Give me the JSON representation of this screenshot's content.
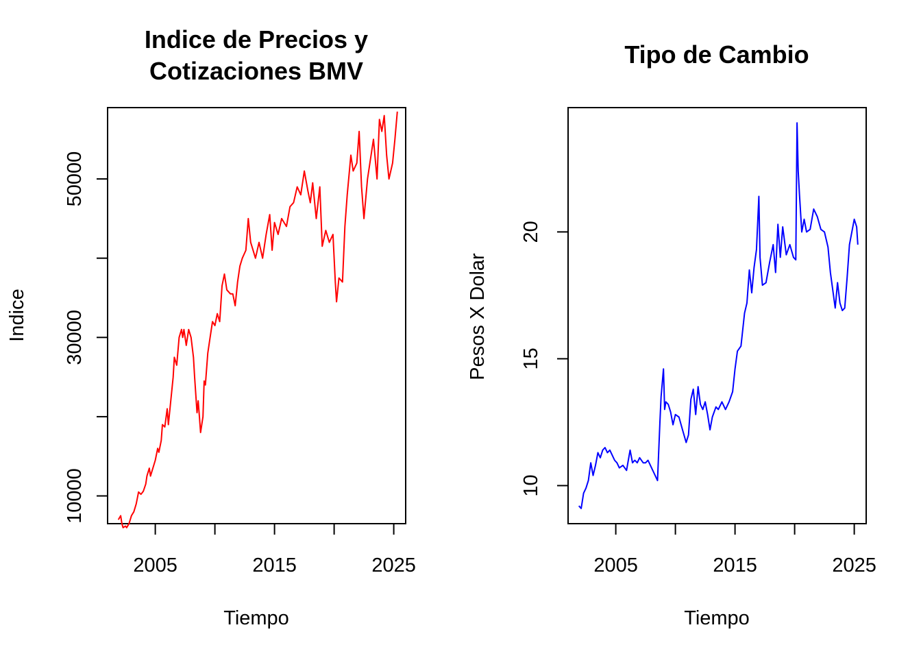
{
  "chart_data": [
    {
      "type": "line",
      "title_lines": [
        "Indice de Precios y",
        "Cotizaciones BMV"
      ],
      "xlabel": "Tiempo",
      "ylabel": "Indice",
      "xlim": [
        2001,
        2026
      ],
      "ylim": [
        6500,
        59000
      ],
      "x_ticks": [
        2005,
        2010,
        2015,
        2020,
        2025
      ],
      "x_tick_labels": [
        "2005",
        "",
        "2015",
        "",
        "2025"
      ],
      "y_ticks": [
        10000,
        20000,
        30000,
        40000,
        50000
      ],
      "y_tick_labels": [
        "10000",
        "",
        "30000",
        "",
        "50000"
      ],
      "color": "#ff0000",
      "series": [
        {
          "x": [
            2001.9,
            2002.1,
            2002.2,
            2002.3,
            2002.5,
            2002.6,
            2002.8,
            2003.0,
            2003.2,
            2003.4,
            2003.6,
            2003.8,
            2004.0,
            2004.2,
            2004.3,
            2004.5,
            2004.6,
            2004.8,
            2005.0,
            2005.2,
            2005.3,
            2005.5,
            2005.6,
            2005.8,
            2006.0,
            2006.1,
            2006.3,
            2006.5,
            2006.6,
            2006.8,
            2007.0,
            2007.2,
            2007.3,
            2007.4,
            2007.6,
            2007.8,
            2008.0,
            2008.2,
            2008.3,
            2008.5,
            2008.6,
            2008.7,
            2008.8,
            2009.0,
            2009.1,
            2009.2,
            2009.4,
            2009.6,
            2009.8,
            2010.0,
            2010.2,
            2010.4,
            2010.6,
            2010.8,
            2011.0,
            2011.3,
            2011.5,
            2011.7,
            2011.9,
            2012.1,
            2012.3,
            2012.6,
            2012.8,
            2013.0,
            2013.2,
            2013.4,
            2013.7,
            2014.0,
            2014.3,
            2014.6,
            2014.8,
            2015.0,
            2015.3,
            2015.6,
            2016.0,
            2016.3,
            2016.6,
            2016.9,
            2017.2,
            2017.5,
            2017.8,
            2018.0,
            2018.2,
            2018.5,
            2018.8,
            2019.0,
            2019.3,
            2019.6,
            2019.9,
            2020.1,
            2020.2,
            2020.4,
            2020.7,
            2020.9,
            2021.1,
            2021.4,
            2021.6,
            2021.9,
            2022.1,
            2022.3,
            2022.5,
            2022.8,
            2023.1,
            2023.3,
            2023.6,
            2023.8,
            2024.0,
            2024.2,
            2024.4,
            2024.6,
            2024.9,
            2025.1,
            2025.3
          ],
          "values": [
            7000,
            7500,
            6500,
            6000,
            6200,
            6000,
            6500,
            7500,
            8000,
            9000,
            10500,
            10200,
            10600,
            11500,
            12500,
            13500,
            12500,
            13500,
            14500,
            16000,
            15500,
            17000,
            19000,
            18700,
            21000,
            19000,
            22000,
            25000,
            27500,
            26500,
            30000,
            31000,
            30000,
            31000,
            29000,
            31000,
            30000,
            27500,
            25000,
            20500,
            22000,
            20000,
            18000,
            20000,
            24500,
            24000,
            28000,
            30000,
            32000,
            31500,
            33000,
            32000,
            36500,
            38000,
            36000,
            35500,
            35500,
            34000,
            37000,
            39000,
            40000,
            41000,
            45000,
            42000,
            41000,
            40000,
            42000,
            40000,
            43000,
            45500,
            41000,
            44500,
            43000,
            45000,
            44000,
            46500,
            47000,
            49000,
            48000,
            51000,
            48500,
            47000,
            49500,
            45000,
            49000,
            41500,
            43500,
            42000,
            43000,
            37000,
            34500,
            37500,
            37000,
            44000,
            48000,
            53000,
            51000,
            52000,
            56000,
            49000,
            45000,
            50000,
            53000,
            55000,
            50000,
            57500,
            56000,
            58000,
            53000,
            50000,
            52000,
            55000,
            58500
          ]
        }
      ]
    },
    {
      "type": "line",
      "title_lines": [
        "Tipo de Cambio"
      ],
      "xlabel": "Tiempo",
      "ylabel": "Pesos X Dolar",
      "xlim": [
        2001,
        2026
      ],
      "ylim": [
        8.5,
        24.9
      ],
      "x_ticks": [
        2005,
        2010,
        2015,
        2020,
        2025
      ],
      "x_tick_labels": [
        "2005",
        "",
        "2015",
        "",
        "2025"
      ],
      "y_ticks": [
        10,
        15,
        20
      ],
      "y_tick_labels": [
        "10",
        "15",
        "20"
      ],
      "color": "#0000ff",
      "series": [
        {
          "x": [
            2001.9,
            2002.1,
            2002.3,
            2002.5,
            2002.7,
            2002.9,
            2003.1,
            2003.3,
            2003.5,
            2003.7,
            2003.9,
            2004.1,
            2004.3,
            2004.5,
            2004.7,
            2004.9,
            2005.1,
            2005.3,
            2005.6,
            2005.9,
            2006.2,
            2006.4,
            2006.6,
            2006.8,
            2007.0,
            2007.3,
            2007.5,
            2007.7,
            2007.9,
            2008.2,
            2008.5,
            2008.7,
            2008.8,
            2009.0,
            2009.1,
            2009.2,
            2009.4,
            2009.6,
            2009.8,
            2010.0,
            2010.3,
            2010.6,
            2010.9,
            2011.1,
            2011.3,
            2011.5,
            2011.7,
            2011.9,
            2012.1,
            2012.3,
            2012.5,
            2012.7,
            2012.9,
            2013.1,
            2013.4,
            2013.6,
            2013.9,
            2014.2,
            2014.5,
            2014.8,
            2015.0,
            2015.2,
            2015.5,
            2015.8,
            2016.0,
            2016.2,
            2016.4,
            2016.6,
            2016.8,
            2017.0,
            2017.1,
            2017.3,
            2017.6,
            2017.9,
            2018.2,
            2018.4,
            2018.6,
            2018.8,
            2019.0,
            2019.3,
            2019.6,
            2019.9,
            2020.1,
            2020.2,
            2020.3,
            2020.4,
            2020.6,
            2020.8,
            2021.0,
            2021.3,
            2021.6,
            2021.9,
            2022.2,
            2022.5,
            2022.8,
            2023.0,
            2023.2,
            2023.4,
            2023.6,
            2023.8,
            2024.0,
            2024.2,
            2024.4,
            2024.6,
            2024.8,
            2025.0,
            2025.2,
            2025.3
          ],
          "values": [
            9.2,
            9.1,
            9.7,
            9.9,
            10.2,
            10.9,
            10.4,
            10.8,
            11.3,
            11.1,
            11.4,
            11.5,
            11.3,
            11.4,
            11.2,
            11.0,
            10.9,
            10.7,
            10.8,
            10.6,
            11.4,
            10.9,
            11.0,
            10.9,
            11.1,
            10.9,
            10.9,
            11.0,
            10.8,
            10.5,
            10.2,
            12.5,
            13.5,
            14.6,
            13.0,
            13.3,
            13.2,
            12.9,
            12.4,
            12.8,
            12.7,
            12.2,
            11.7,
            12.0,
            13.4,
            13.8,
            12.8,
            13.9,
            13.2,
            13.0,
            13.3,
            12.8,
            12.2,
            12.7,
            13.1,
            13.0,
            13.3,
            13.0,
            13.3,
            13.7,
            14.6,
            15.3,
            15.5,
            16.8,
            17.2,
            18.5,
            17.6,
            18.6,
            19.3,
            21.4,
            19.0,
            17.9,
            18.0,
            18.8,
            19.5,
            18.4,
            20.3,
            19.0,
            20.2,
            19.1,
            19.5,
            19.0,
            18.9,
            24.3,
            22.4,
            21.5,
            20.0,
            20.5,
            20.0,
            20.1,
            20.9,
            20.6,
            20.1,
            20.0,
            19.4,
            18.4,
            17.7,
            17.0,
            18.0,
            17.2,
            16.9,
            17.0,
            18.2,
            19.5,
            20.0,
            20.5,
            20.2,
            19.5
          ]
        }
      ]
    }
  ]
}
